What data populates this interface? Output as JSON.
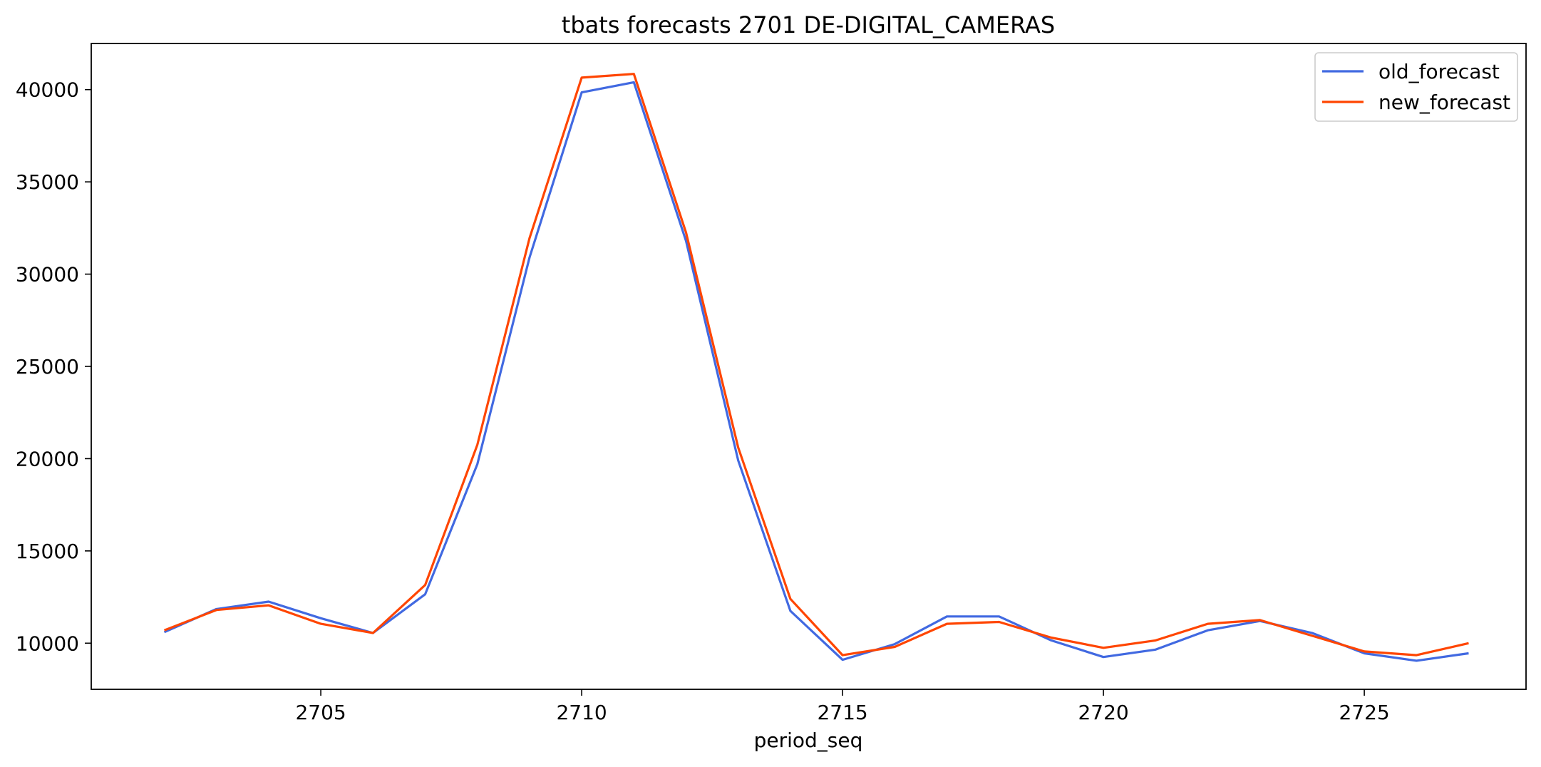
{
  "chart_data": {
    "type": "line",
    "title": "tbats forecasts 2701 DE-DIGITAL_CAMERAS",
    "xlabel": "period_seq",
    "ylabel": "",
    "xlim": [
      2700.6,
      2728.1
    ],
    "ylim": [
      7500,
      42500
    ],
    "xticks": [
      2705,
      2710,
      2715,
      2720,
      2725
    ],
    "yticks": [
      10000,
      15000,
      20000,
      25000,
      30000,
      35000,
      40000
    ],
    "x": [
      2702,
      2703,
      2704,
      2705,
      2706,
      2707,
      2708,
      2709,
      2710,
      2711,
      2712,
      2713,
      2714,
      2715,
      2716,
      2717,
      2718,
      2719,
      2720,
      2721,
      2722,
      2723,
      2724,
      2725,
      2726,
      2727
    ],
    "series": [
      {
        "name": "old_forecast",
        "color": "#4169E1",
        "values": [
          10600,
          11850,
          12250,
          11350,
          10550,
          12650,
          19700,
          30900,
          39850,
          40400,
          31800,
          19900,
          11750,
          9100,
          9950,
          11450,
          11450,
          10150,
          9250,
          9650,
          10700,
          11200,
          10550,
          9450,
          9050,
          9450
        ]
      },
      {
        "name": "new_forecast",
        "color": "#FF4500",
        "values": [
          10700,
          11800,
          12050,
          11050,
          10550,
          13150,
          20750,
          31950,
          40650,
          40850,
          32250,
          20600,
          12400,
          9350,
          9800,
          11050,
          11150,
          10300,
          9750,
          10150,
          11050,
          11250,
          10400,
          9550,
          9350,
          10000
        ]
      }
    ],
    "grid": false,
    "legend": "top-right"
  }
}
